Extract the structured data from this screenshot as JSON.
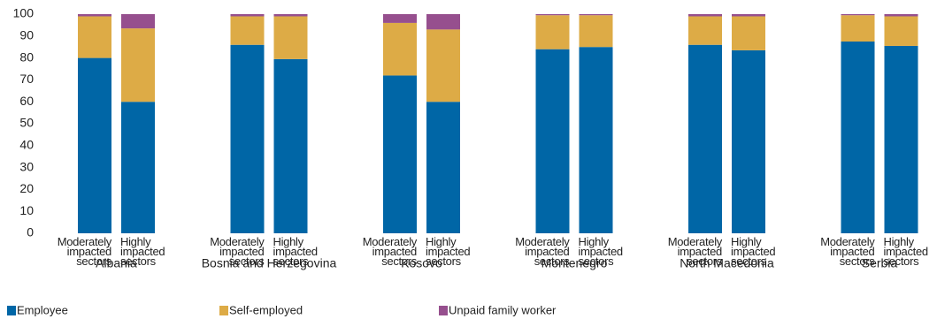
{
  "chart_data": {
    "type": "stacked_bar",
    "groups": [
      "Albania",
      "Bosnia and Herzegovina",
      "Kosovo",
      "Montenegro",
      "North Macedonia",
      "Serbia"
    ],
    "categories": [
      "Moderately impacted sectors",
      "Highly impacted sectors",
      "Moderately impacted sectors",
      "Highly impacted sectors",
      "Moderately impacted sectors",
      "Highly impacted sectors",
      "Moderately impacted sectors",
      "Highly impacted sectors",
      "Moderately impacted sectors",
      "Highly impacted sectors",
      "Moderately impacted sectors",
      "Highly impacted sectors"
    ],
    "series": [
      {
        "name": "Employee",
        "color": "#0066a6",
        "values": [
          80,
          60,
          86,
          79.5,
          72,
          60,
          84,
          85,
          86,
          83.5,
          87.5,
          85.5
        ]
      },
      {
        "name": "Self-employed",
        "color": "#ddab46",
        "values": [
          19,
          33.5,
          13,
          19.5,
          24,
          33,
          15.5,
          14.5,
          13,
          15.5,
          12,
          13.5
        ]
      },
      {
        "name": "Unpaid family worker",
        "color": "#964f8e",
        "values": [
          1,
          6.5,
          1,
          1,
          4,
          7,
          0.5,
          0.5,
          1,
          1,
          0.5,
          1
        ]
      }
    ],
    "ylim": [
      0,
      100
    ],
    "yticks": [
      0,
      10,
      20,
      30,
      40,
      50,
      60,
      70,
      80,
      90,
      100
    ],
    "grid": false
  }
}
